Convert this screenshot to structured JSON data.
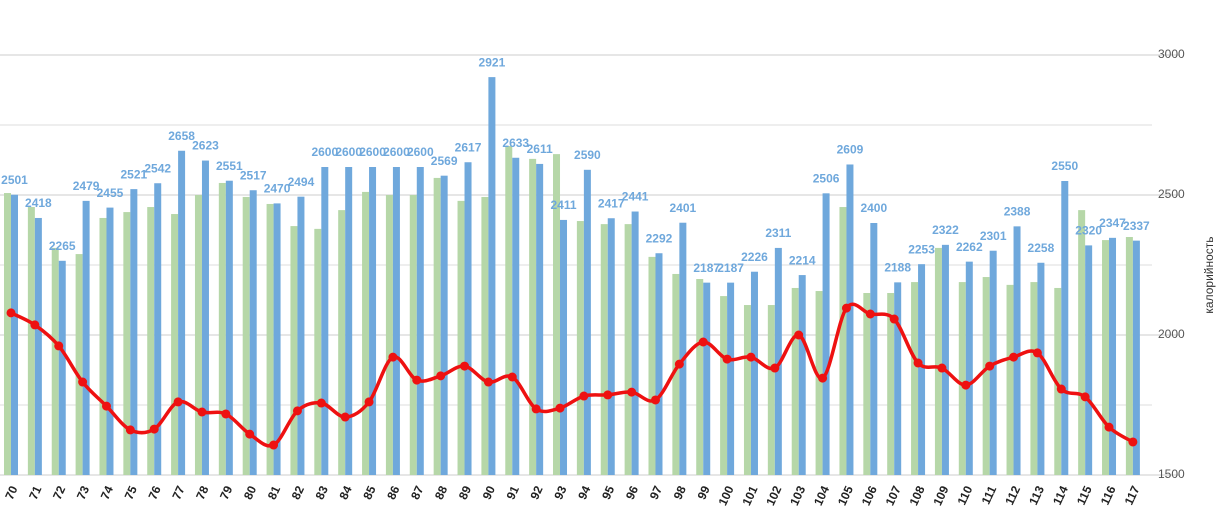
{
  "chart_data": {
    "type": "bar_line",
    "y_label": "калорийность",
    "categories": [
      "70",
      "71",
      "72",
      "73",
      "74",
      "75",
      "76",
      "77",
      "78",
      "79",
      "80",
      "81",
      "82",
      "83",
      "84",
      "85",
      "86",
      "87",
      "88",
      "89",
      "90",
      "91",
      "92",
      "93",
      "94",
      "95",
      "96",
      "97",
      "98",
      "99",
      "100",
      "101",
      "102",
      "103",
      "104",
      "105",
      "106",
      "107",
      "108",
      "109",
      "110",
      "111",
      "112",
      "113",
      "114",
      "115",
      "116",
      "117"
    ],
    "series": [
      {
        "color": "#b6d7a8",
        "kind": "bar",
        "values": [
          2507,
          2457,
          2311,
          2289,
          2418,
          2439,
          2457,
          2432,
          2500,
          2543,
          2493,
          2468,
          2389,
          2379,
          2446,
          2511,
          2500,
          2500,
          2561,
          2479,
          2493,
          2675,
          2629,
          2646,
          2407,
          2396,
          2396,
          2279,
          2218,
          2200,
          2139,
          2107,
          2107,
          2168,
          2157,
          2457,
          2150,
          2150,
          2189,
          2311,
          2189,
          2207,
          2179,
          2189,
          2168,
          2446,
          2339,
          2350
        ]
      },
      {
        "color": "#6fa8dc",
        "kind": "bar",
        "show_labels": true,
        "values": [
          2501,
          2418,
          2265,
          2479,
          2455,
          2521,
          2542,
          2658,
          2623,
          2551,
          2517,
          2470,
          2494,
          2600,
          2600,
          2600,
          2600,
          2600,
          2569,
          2617,
          2921,
          2633,
          2611,
          2411,
          2590,
          2417,
          2441,
          2292,
          2401,
          2187,
          2187,
          2226,
          2311,
          2214,
          2506,
          2609,
          2400,
          2188,
          2253,
          2322,
          2262,
          2301,
          2388,
          2258,
          2550,
          2320,
          2347,
          2337
        ]
      },
      {
        "color": "#ee1111",
        "kind": "line",
        "smooth": true,
        "values": [
          2079,
          2036,
          1961,
          1832,
          1746,
          1661,
          1664,
          1761,
          1725,
          1718,
          1646,
          1607,
          1729,
          1757,
          1707,
          1761,
          1921,
          1839,
          1854,
          1889,
          1832,
          1850,
          1736,
          1739,
          1782,
          1786,
          1796,
          1768,
          1896,
          1975,
          1914,
          1921,
          1882,
          2000,
          1846,
          2096,
          2075,
          2057,
          1900,
          1882,
          1821,
          1889,
          1921,
          1936,
          1807,
          1779,
          1671,
          1618
        ]
      }
    ],
    "ylim": [
      1500,
      3000
    ],
    "yticks": [
      1500,
      2000,
      2500,
      3000
    ],
    "minor_grid": [
      1750,
      2250,
      2750
    ],
    "grid": true
  }
}
